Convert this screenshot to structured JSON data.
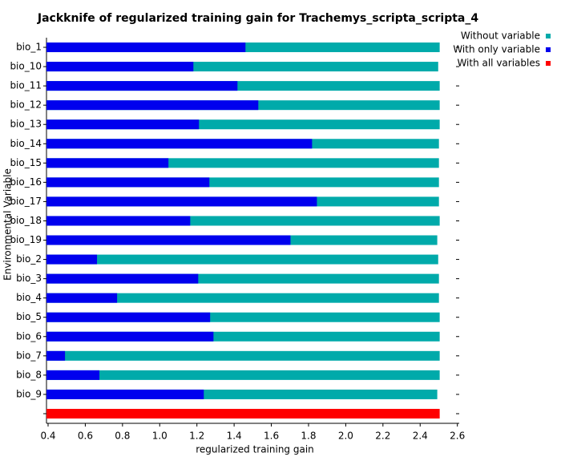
{
  "chart_data": {
    "type": "bar",
    "orientation": "horizontal",
    "title": "Jackknife of regularized training gain for Trachemys_scripta_scripta_4",
    "x_label": "regularized training gain",
    "y_label": "Environmental Variable",
    "categories": [
      "bio_1",
      "bio_10",
      "bio_11",
      "bio_12",
      "bio_13",
      "bio_14",
      "bio_15",
      "bio_16",
      "bio_17",
      "bio_18",
      "bio_19",
      "bio_2",
      "bio_3",
      "bio_4",
      "bio_5",
      "bio_6",
      "bio_7",
      "bio_8",
      "bio_9",
      null
    ],
    "series": [
      {
        "name": "Without variable",
        "color": "#00aaaa",
        "values": [
          2.505,
          2.497,
          2.505,
          2.505,
          2.505,
          2.501,
          2.501,
          2.501,
          2.501,
          2.505,
          2.492,
          2.497,
          2.501,
          2.501,
          2.505,
          2.505,
          2.505,
          2.505,
          2.492,
          null
        ]
      },
      {
        "name": "With only variable",
        "color": "#0000ee",
        "values": [
          1.461,
          1.181,
          1.418,
          1.53,
          1.211,
          1.819,
          1.047,
          1.267,
          1.845,
          1.164,
          1.703,
          0.663,
          1.207,
          0.771,
          1.271,
          1.289,
          0.491,
          0.676,
          1.237,
          null
        ]
      },
      {
        "name": "With all variables",
        "color": "#ff0000",
        "values": [
          null,
          null,
          null,
          null,
          null,
          null,
          null,
          null,
          null,
          null,
          null,
          null,
          null,
          null,
          null,
          null,
          null,
          null,
          null,
          2.505
        ]
      }
    ],
    "xlim": [
      0.4,
      2.61
    ],
    "xticks": [
      0.4,
      0.6,
      0.8,
      {
        "value": 1,
        "label": "1.0"
      },
      1.2,
      1.4,
      1.6,
      1.8,
      {
        "value": 2,
        "label": "2.0"
      },
      2.2,
      2.4,
      2.6
    ],
    "legend": "right"
  }
}
